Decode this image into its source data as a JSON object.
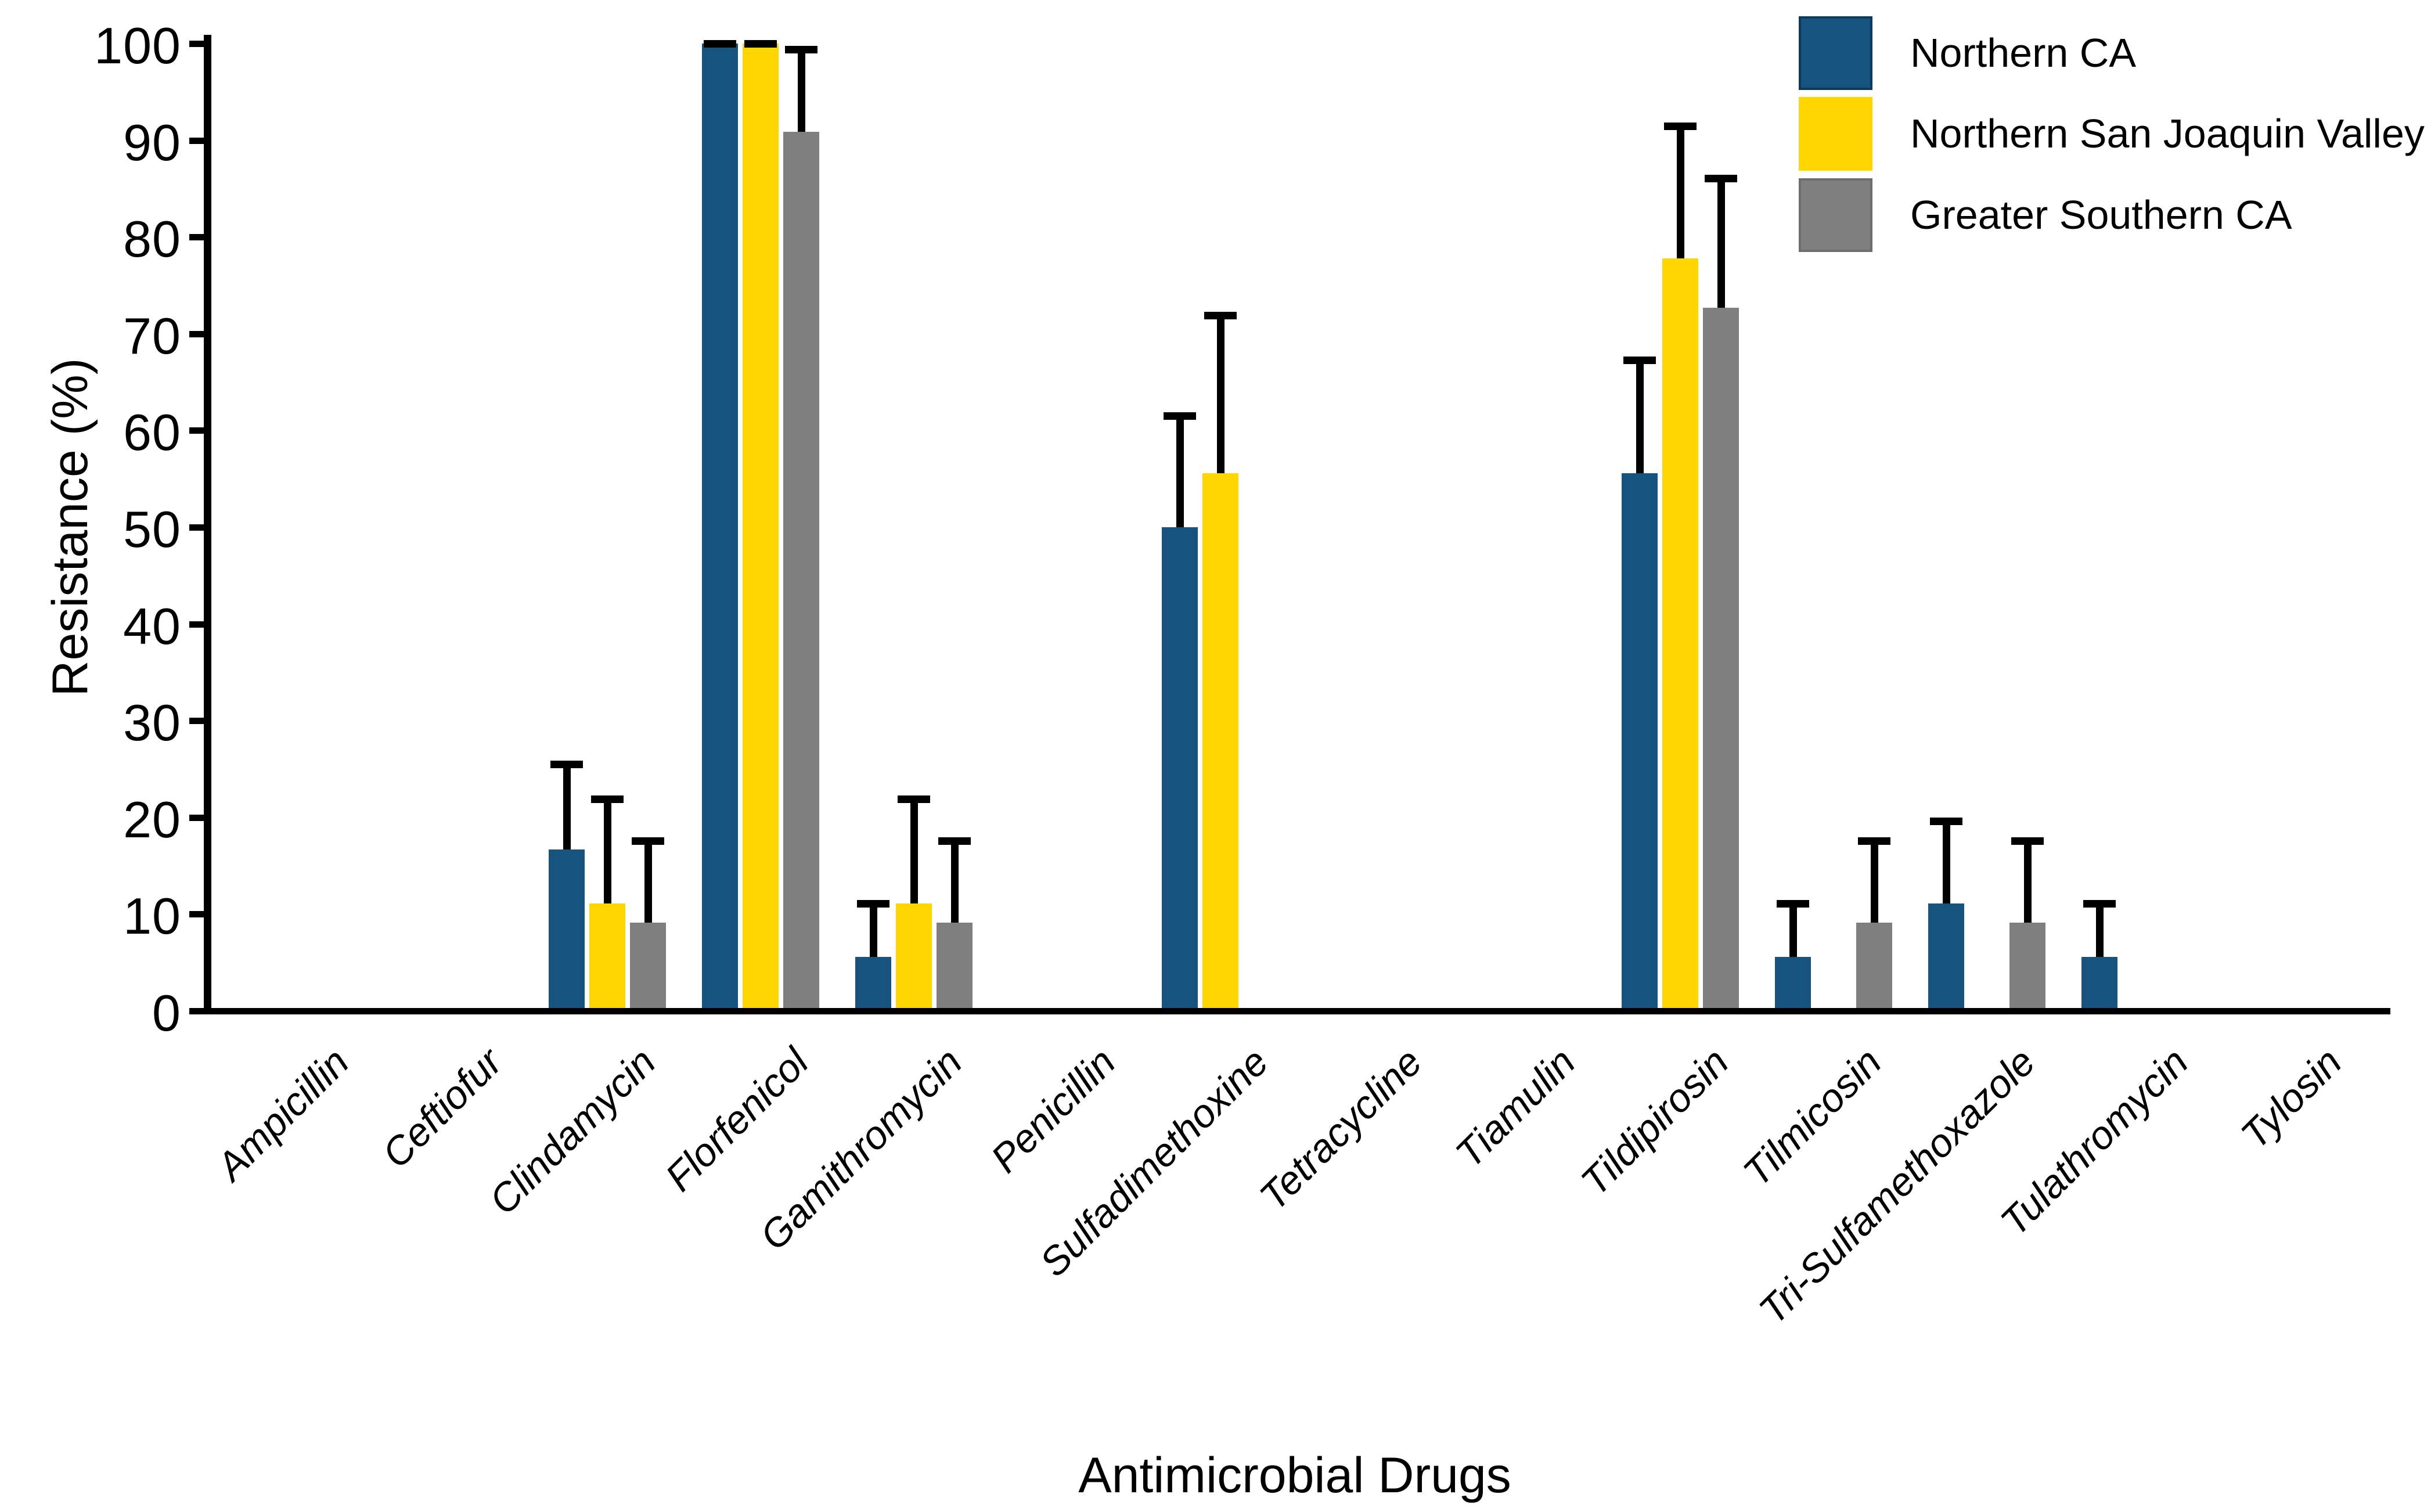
{
  "chart_data": {
    "type": "bar",
    "title": "",
    "xlabel": "Antimicrobial Drugs",
    "ylabel": "Resistance (%)",
    "ylim": [
      0,
      100
    ],
    "ytick_step": 10,
    "ytick_labels": [
      "0",
      "10",
      "20",
      "30",
      "40",
      "50",
      "60",
      "70",
      "80",
      "90",
      "100"
    ],
    "grid": false,
    "legend_position": "top-right",
    "error_bars": "upper only, black caps",
    "categories": [
      "Ampicillin",
      "Ceftiofur",
      "Clindamycin",
      "Florfenicol",
      "Gamithromycin",
      "Penicillin",
      "Sulfadimethoxine",
      "Tetracycline",
      "Tiamulin",
      "Tildipirosin",
      "Tilmicosin",
      "Tri-Sulfamethoxazole",
      "Tulathromycin",
      "Tylosin"
    ],
    "series": [
      {
        "name": "Northern CA",
        "color": "#16537E",
        "values": [
          0,
          0,
          16.7,
          100,
          5.6,
          0,
          50.0,
          0,
          0,
          55.6,
          5.6,
          11.1,
          5.6,
          0
        ],
        "upper_error_tops": [
          null,
          null,
          25.5,
          100,
          11.1,
          null,
          61.5,
          null,
          null,
          67.3,
          11.1,
          19.6,
          11.1,
          null
        ]
      },
      {
        "name": "Northern San Joaquin Valley",
        "color": "#FFD602",
        "values": [
          0,
          0,
          11.1,
          100,
          11.1,
          0,
          55.6,
          0,
          0,
          77.8,
          0,
          0,
          0,
          0
        ],
        "upper_error_tops": [
          null,
          null,
          21.9,
          100,
          21.9,
          null,
          71.9,
          null,
          null,
          91.5,
          null,
          null,
          null,
          null
        ]
      },
      {
        "name": "Greater Southern CA",
        "color": "#7F7F7F",
        "values": [
          0,
          0,
          9.1,
          90.9,
          9.1,
          0,
          0,
          0,
          0,
          72.7,
          9.1,
          9.1,
          0,
          0
        ],
        "upper_error_tops": [
          null,
          null,
          17.6,
          99.4,
          17.6,
          null,
          null,
          null,
          null,
          86.1,
          17.6,
          17.6,
          null,
          null
        ]
      }
    ]
  }
}
